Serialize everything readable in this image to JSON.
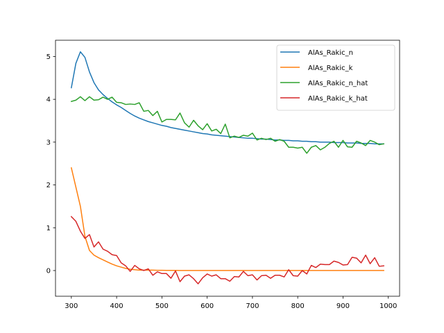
{
  "chart_data": {
    "type": "line",
    "title": "",
    "xlabel": "",
    "ylabel": "",
    "xlim": [
      265,
      1025
    ],
    "ylim": [
      -0.6,
      5.38
    ],
    "grid": false,
    "legend_position": "top-right",
    "x_ticks": [
      300,
      400,
      500,
      600,
      700,
      800,
      900,
      1000
    ],
    "y_ticks": [
      0,
      1,
      2,
      3,
      4,
      5
    ],
    "x": [
      300,
      310,
      320,
      330,
      340,
      350,
      360,
      370,
      380,
      390,
      400,
      410,
      420,
      430,
      440,
      450,
      460,
      470,
      480,
      490,
      500,
      510,
      520,
      530,
      540,
      550,
      560,
      570,
      580,
      590,
      600,
      610,
      620,
      630,
      640,
      650,
      660,
      670,
      680,
      690,
      700,
      710,
      720,
      730,
      740,
      750,
      760,
      770,
      780,
      790,
      800,
      810,
      820,
      830,
      840,
      850,
      860,
      870,
      880,
      890,
      900,
      910,
      920,
      930,
      940,
      950,
      960,
      970,
      980,
      990
    ],
    "series": [
      {
        "name": "AlAs_Rakic_n",
        "color": "#1f77b4",
        "values": [
          4.27,
          4.84,
          5.11,
          4.98,
          4.64,
          4.39,
          4.22,
          4.11,
          4.02,
          3.94,
          3.87,
          3.81,
          3.74,
          3.67,
          3.61,
          3.56,
          3.52,
          3.48,
          3.45,
          3.42,
          3.39,
          3.37,
          3.34,
          3.32,
          3.3,
          3.28,
          3.26,
          3.24,
          3.22,
          3.2,
          3.19,
          3.17,
          3.16,
          3.15,
          3.14,
          3.13,
          3.12,
          3.11,
          3.1,
          3.09,
          3.09,
          3.08,
          3.07,
          3.07,
          3.06,
          3.05,
          3.05,
          3.04,
          3.04,
          3.03,
          3.03,
          3.02,
          3.02,
          3.01,
          3.01,
          3.0,
          3.0,
          3.0,
          2.99,
          2.99,
          2.99,
          2.98,
          2.98,
          2.98,
          2.97,
          2.97,
          2.97,
          2.96,
          2.96,
          2.96
        ]
      },
      {
        "name": "AlAs_Rakic_k",
        "color": "#ff7f0e",
        "values": [
          2.4,
          1.95,
          1.5,
          0.8,
          0.47,
          0.36,
          0.3,
          0.25,
          0.2,
          0.15,
          0.11,
          0.08,
          0.05,
          0.03,
          0.02,
          0.01,
          0.01,
          0.01,
          0.01,
          0.005,
          0.005,
          0.004,
          0.003,
          0.003,
          0.002,
          0.002,
          0.002,
          0.001,
          0.001,
          0.001,
          0.001,
          0.001,
          0.001,
          0.001,
          0.001,
          0.001,
          0.001,
          0.001,
          0.001,
          0.001,
          0.001,
          0.001,
          0.001,
          0.001,
          0.001,
          0.001,
          0.001,
          0.001,
          0.001,
          0.001,
          0.001,
          0.001,
          0.001,
          0.001,
          0.001,
          0.001,
          0.001,
          0.001,
          0.001,
          0.001,
          0.001,
          0.001,
          0.001,
          0.001,
          0.001,
          0.001,
          0.001,
          0.001,
          0.001,
          0.001
        ]
      },
      {
        "name": "AlAs_Rakic_n_hat",
        "color": "#2ca02c",
        "values": [
          3.95,
          3.98,
          4.06,
          3.97,
          4.06,
          3.98,
          3.99,
          4.05,
          4.0,
          4.05,
          3.93,
          3.92,
          3.88,
          3.89,
          3.88,
          3.92,
          3.72,
          3.74,
          3.62,
          3.72,
          3.47,
          3.53,
          3.53,
          3.52,
          3.68,
          3.45,
          3.35,
          3.51,
          3.38,
          3.29,
          3.43,
          3.26,
          3.3,
          3.2,
          3.42,
          3.1,
          3.14,
          3.11,
          3.16,
          3.14,
          3.21,
          3.05,
          3.09,
          3.06,
          3.09,
          3.02,
          3.06,
          3.02,
          2.88,
          2.88,
          2.86,
          2.88,
          2.74,
          2.88,
          2.92,
          2.82,
          2.88,
          2.97,
          3.02,
          2.88,
          3.04,
          2.89,
          2.88,
          3.02,
          2.98,
          2.92,
          3.04,
          3.0,
          2.94,
          2.96
        ]
      },
      {
        "name": "AlAs_Rakic_k_hat",
        "color": "#d62728",
        "values": [
          1.26,
          1.15,
          0.92,
          0.75,
          0.84,
          0.55,
          0.67,
          0.5,
          0.45,
          0.37,
          0.35,
          0.18,
          0.11,
          -0.02,
          0.12,
          0.04,
          0.0,
          0.04,
          -0.11,
          -0.03,
          -0.07,
          -0.07,
          -0.18,
          -0.01,
          -0.26,
          -0.13,
          -0.1,
          -0.19,
          -0.31,
          -0.17,
          -0.08,
          -0.13,
          -0.1,
          -0.19,
          -0.19,
          -0.25,
          -0.14,
          -0.15,
          -0.02,
          -0.12,
          -0.1,
          -0.22,
          -0.12,
          -0.11,
          -0.18,
          -0.11,
          -0.11,
          -0.15,
          0.02,
          -0.12,
          -0.13,
          0.0,
          -0.08,
          0.12,
          0.07,
          0.15,
          0.14,
          0.14,
          0.22,
          0.19,
          0.13,
          0.14,
          0.31,
          0.29,
          0.18,
          0.36,
          0.16,
          0.3,
          0.1,
          0.11
        ]
      }
    ]
  }
}
